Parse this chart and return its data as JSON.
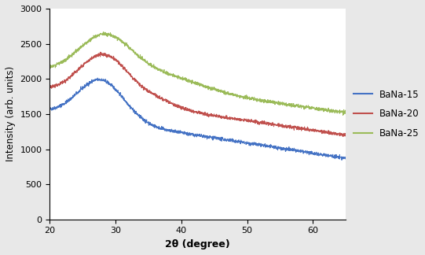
{
  "title": "",
  "xlabel": "2θ (degree)",
  "ylabel": "Intensity (arb. units)",
  "xlim": [
    20,
    65
  ],
  "ylim": [
    0,
    3000
  ],
  "yticks": [
    0,
    500,
    1000,
    1500,
    2000,
    2500,
    3000
  ],
  "xticks": [
    20,
    30,
    40,
    50,
    60
  ],
  "legend_labels": [
    "BaNa-15",
    "BaNa-20",
    "BaNa-25"
  ],
  "line_colors": [
    "#4472C4",
    "#C0504D",
    "#9BBB59"
  ],
  "background_color": "#FFFFFF",
  "fig_bg_color": "#E8E8E8",
  "seed": 42,
  "noise_level": 12,
  "n_points": 2000
}
